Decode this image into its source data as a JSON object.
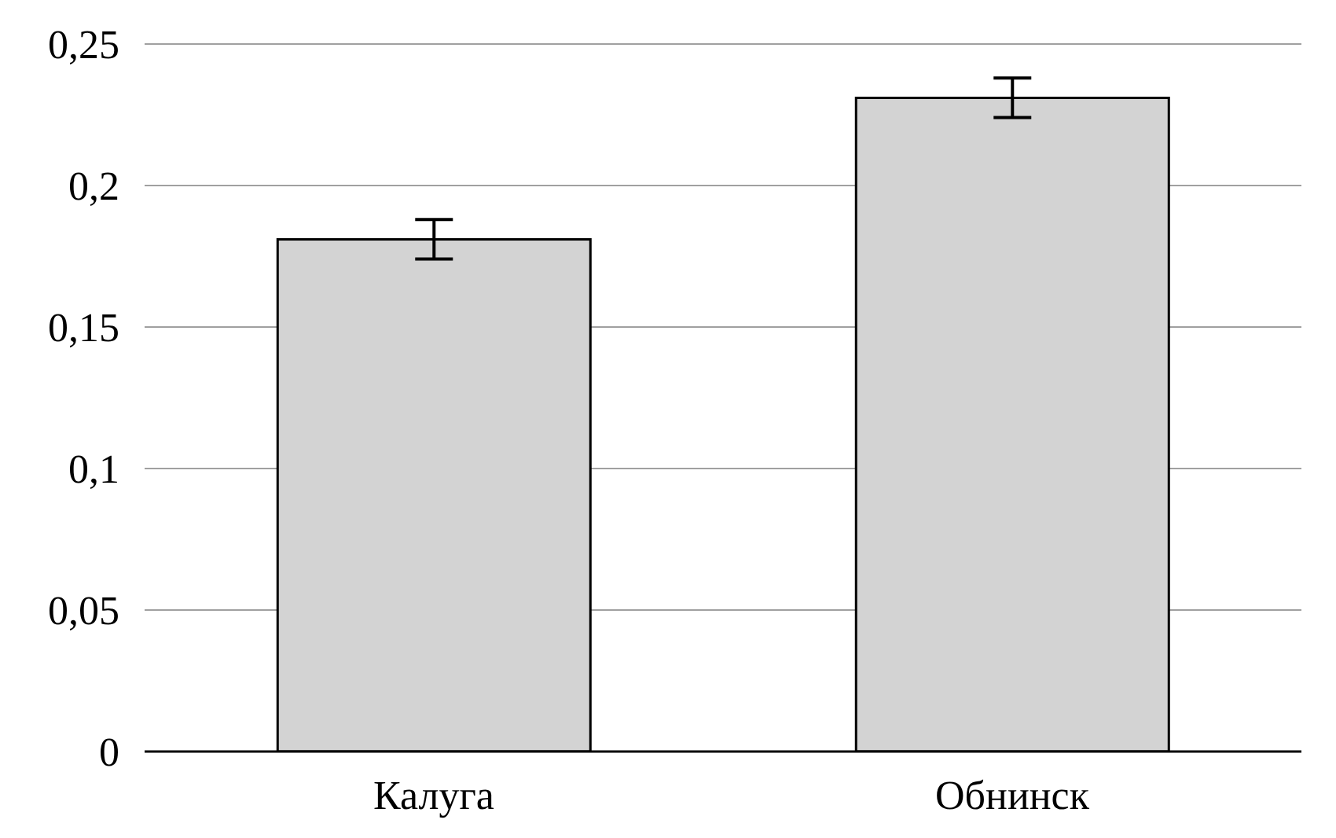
{
  "chart_data": {
    "type": "bar",
    "categories": [
      "Калуга",
      "Обнинск"
    ],
    "values": [
      0.181,
      0.231
    ],
    "errors": [
      0.007,
      0.007
    ],
    "color": "#d3d3d3",
    "ylim": [
      0,
      0.25
    ],
    "yticks": [
      0,
      {
        "value": 0.05,
        "label": "0,05"
      },
      {
        "value": 0.1,
        "label": "0,1"
      },
      {
        "value": 0.15,
        "label": "0,15"
      },
      {
        "value": 0.2,
        "label": "0,2"
      },
      {
        "value": 0.25,
        "label": "0,25"
      }
    ],
    "grid": "y"
  }
}
